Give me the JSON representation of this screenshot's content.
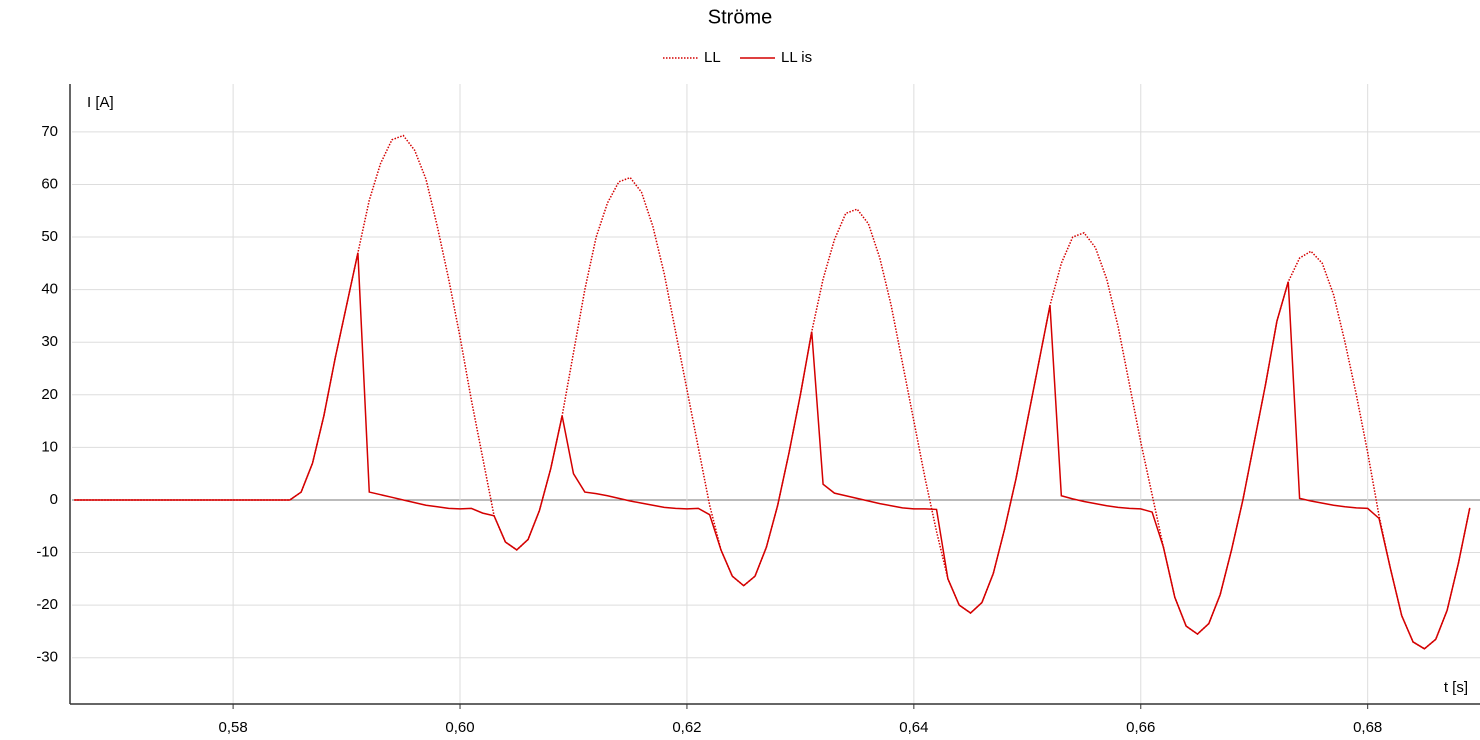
{
  "chart_data": {
    "type": "line",
    "title": "Ströme",
    "x_label": "t [s]",
    "y_label": "I [A]",
    "x": [
      0.566,
      0.567,
      0.568,
      0.569,
      0.57,
      0.571,
      0.572,
      0.573,
      0.574,
      0.575,
      0.576,
      0.577,
      0.578,
      0.579,
      0.58,
      0.581,
      0.582,
      0.583,
      0.584,
      0.585,
      0.586,
      0.587,
      0.588,
      0.589,
      0.59,
      0.591,
      0.592,
      0.593,
      0.594,
      0.595,
      0.596,
      0.597,
      0.598,
      0.599,
      0.6,
      0.601,
      0.602,
      0.603,
      0.604,
      0.605,
      0.606,
      0.607,
      0.608,
      0.609,
      0.61,
      0.611,
      0.612,
      0.613,
      0.614,
      0.615,
      0.616,
      0.617,
      0.618,
      0.619,
      0.62,
      0.621,
      0.622,
      0.623,
      0.624,
      0.625,
      0.626,
      0.627,
      0.628,
      0.629,
      0.63,
      0.631,
      0.632,
      0.633,
      0.634,
      0.635,
      0.636,
      0.637,
      0.638,
      0.639,
      0.64,
      0.641,
      0.642,
      0.643,
      0.644,
      0.645,
      0.646,
      0.647,
      0.648,
      0.649,
      0.65,
      0.651,
      0.652,
      0.653,
      0.654,
      0.655,
      0.656,
      0.657,
      0.658,
      0.659,
      0.66,
      0.661,
      0.662,
      0.663,
      0.664,
      0.665,
      0.666,
      0.667,
      0.668,
      0.669,
      0.67,
      0.671,
      0.672,
      0.673,
      0.674,
      0.675,
      0.676,
      0.677,
      0.678,
      0.679,
      0.68,
      0.681,
      0.682,
      0.683,
      0.684,
      0.685,
      0.686,
      0.687,
      0.688,
      0.689
    ],
    "series": [
      {
        "name": "LL",
        "color": "#d40000",
        "dash": "dotted",
        "values": [
          0,
          0,
          0,
          0,
          0,
          0,
          0,
          0,
          0,
          0,
          0,
          0,
          0,
          0,
          0,
          0,
          0,
          0,
          0,
          0,
          1.5,
          7,
          16,
          27,
          37,
          47,
          57,
          64,
          68.5,
          69.3,
          66.5,
          61,
          52,
          42,
          31,
          19,
          8,
          -3,
          -8,
          -9.5,
          -7.5,
          -2,
          6,
          16,
          28,
          40,
          50,
          56.5,
          60.5,
          61.3,
          58.5,
          52,
          43,
          32,
          21,
          10,
          -1,
          -9.5,
          -14.5,
          -16.3,
          -14.5,
          -9,
          -1,
          9,
          20,
          32,
          42,
          49.5,
          54.5,
          55.3,
          52.5,
          46,
          37,
          26,
          15,
          4,
          -6,
          -15,
          -20,
          -21.5,
          -19.5,
          -14,
          -5.5,
          4,
          15,
          26,
          37,
          45,
          50,
          50.8,
          48,
          42,
          33,
          22,
          11,
          1,
          -9,
          -18.5,
          -24,
          -25.5,
          -23.5,
          -18,
          -9.5,
          0,
          11,
          22,
          34,
          41.5,
          46,
          47.3,
          45,
          39,
          30,
          20,
          9,
          -3,
          -13,
          -22,
          -27,
          -28.3,
          -26.5,
          -21,
          -12,
          -1.5
        ]
      },
      {
        "name": "LL is",
        "color": "#d40000",
        "dash": "solid",
        "values": [
          0,
          0,
          0,
          0,
          0,
          0,
          0,
          0,
          0,
          0,
          0,
          0,
          0,
          0,
          0,
          0,
          0,
          0,
          0,
          0,
          1.5,
          7,
          16,
          27,
          37,
          47,
          1.5,
          1,
          0.5,
          0,
          -0.5,
          -1,
          -1.3,
          -1.6,
          -1.7,
          -1.6,
          -2.5,
          -3,
          -8,
          -9.5,
          -7.5,
          -2,
          6,
          16,
          5,
          1.5,
          1.2,
          0.8,
          0.3,
          -0.2,
          -0.6,
          -1,
          -1.4,
          -1.6,
          -1.7,
          -1.6,
          -2.8,
          -9.5,
          -14.5,
          -16.3,
          -14.5,
          -9,
          -1,
          9,
          20,
          32,
          3,
          1.3,
          0.8,
          0.3,
          -0.2,
          -0.7,
          -1.1,
          -1.5,
          -1.7,
          -1.7,
          -1.8,
          -15,
          -20,
          -21.5,
          -19.5,
          -14,
          -5.5,
          4,
          15,
          26,
          37,
          0.8,
          0.2,
          -0.3,
          -0.7,
          -1.1,
          -1.4,
          -1.6,
          -1.7,
          -2.3,
          -9,
          -18.5,
          -24,
          -25.5,
          -23.5,
          -18,
          -9.5,
          0,
          11,
          22,
          34,
          41.5,
          0.3,
          -0.2,
          -0.6,
          -1,
          -1.3,
          -1.5,
          -1.6,
          -3.5,
          -13,
          -22,
          -27,
          -28.3,
          -26.5,
          -21,
          -12,
          -1.5
        ]
      }
    ],
    "xlim": [
      0.5658,
      0.6899
    ],
    "ylim": [
      -38.8,
      79.1
    ],
    "xticks": [
      {
        "value": 0.58,
        "label": "0,58"
      },
      {
        "value": 0.6,
        "label": "0,60"
      },
      {
        "value": 0.62,
        "label": "0,62"
      },
      {
        "value": 0.64,
        "label": "0,64"
      },
      {
        "value": 0.66,
        "label": "0,66"
      },
      {
        "value": 0.68,
        "label": "0,68"
      }
    ],
    "yticks": [
      -30,
      -20,
      -10,
      0,
      10,
      20,
      30,
      40,
      50,
      60,
      70
    ],
    "grid": true,
    "legend": "top"
  }
}
